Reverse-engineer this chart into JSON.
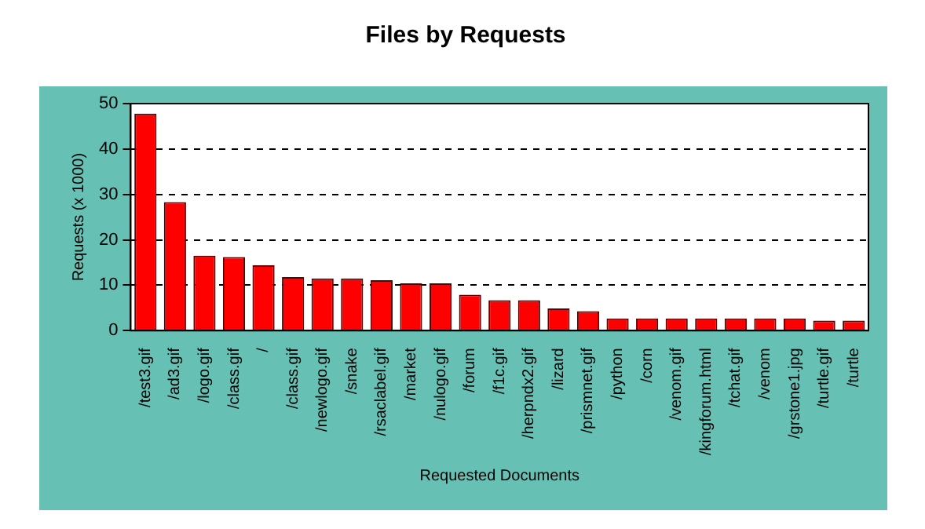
{
  "chart_data": {
    "type": "bar",
    "title": "Files by Requests",
    "xlabel": "Requested Documents",
    "ylabel": "Requests (x 1000)",
    "categories": [
      "/test3.gif",
      "/ad3.gif",
      "/logo.gif",
      "/class.gif",
      "/",
      "/class.gif",
      "/newlogo.gif",
      "/snake",
      "/rsaclabel.gif",
      "/market",
      "/nulogo.gif",
      "/forum",
      "/f1c.gif",
      "/herpndx2.gif",
      "/lizard",
      "/prismnet.gif",
      "/python",
      "/corn",
      "/venom.gif",
      "/kingforum.html",
      "/tchat.gif",
      "/venom",
      "/grstone1.jpg",
      "/turtle.gif",
      "/turtle"
    ],
    "values": [
      47.8,
      28.3,
      16.5,
      16.2,
      14.4,
      11.8,
      11.5,
      11.5,
      11.1,
      10.4,
      10.4,
      7.9,
      6.7,
      6.7,
      4.9,
      4.3,
      2.7,
      2.7,
      2.7,
      2.7,
      2.7,
      2.7,
      2.7,
      2.2,
      2.2
    ],
    "color": "#ff0000",
    "ylim": [
      0,
      50
    ],
    "yticks": [
      0,
      10,
      20,
      30,
      40,
      50
    ],
    "grid": "y",
    "legend": false
  }
}
